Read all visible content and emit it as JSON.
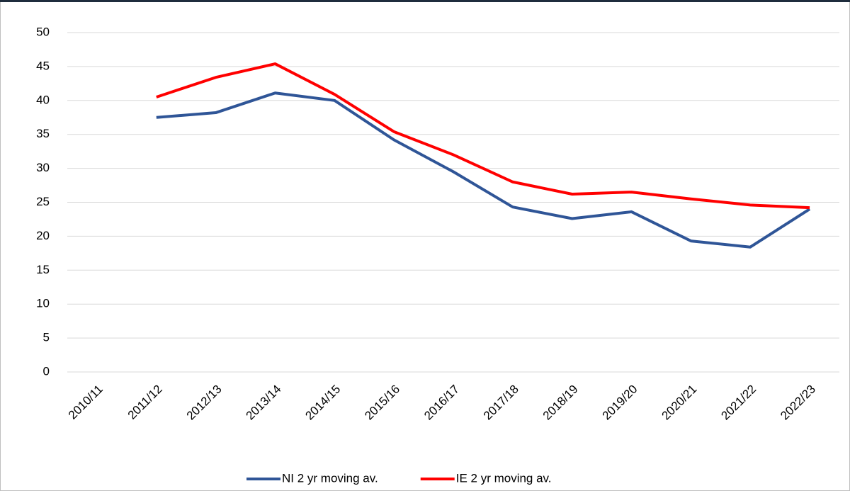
{
  "chart_data": {
    "type": "line",
    "categories": [
      "2010/11",
      "2011/12",
      "2012/13",
      "2013/14",
      "2014/15",
      "2015/16",
      "2016/17",
      "2017/18",
      "2018/19",
      "2019/20",
      "2020/21",
      "2021/22",
      "2022/23"
    ],
    "series": [
      {
        "name": "NI 2 yr moving av.",
        "color": "#2f5597",
        "values": [
          null,
          37.5,
          38.2,
          41.1,
          40.0,
          34.2,
          29.5,
          24.3,
          22.6,
          23.6,
          19.3,
          18.4,
          24.0
        ]
      },
      {
        "name": "IE 2 yr moving av.",
        "color": "#ff0000",
        "values": [
          null,
          40.5,
          43.4,
          45.4,
          40.9,
          35.4,
          32.0,
          28.0,
          26.2,
          26.5,
          25.5,
          24.6,
          24.2
        ]
      }
    ],
    "ylim": [
      0,
      50
    ],
    "yticks": [
      0,
      5,
      10,
      15,
      20,
      25,
      30,
      35,
      40,
      45,
      50
    ],
    "grid": true,
    "legend": "bottom"
  }
}
